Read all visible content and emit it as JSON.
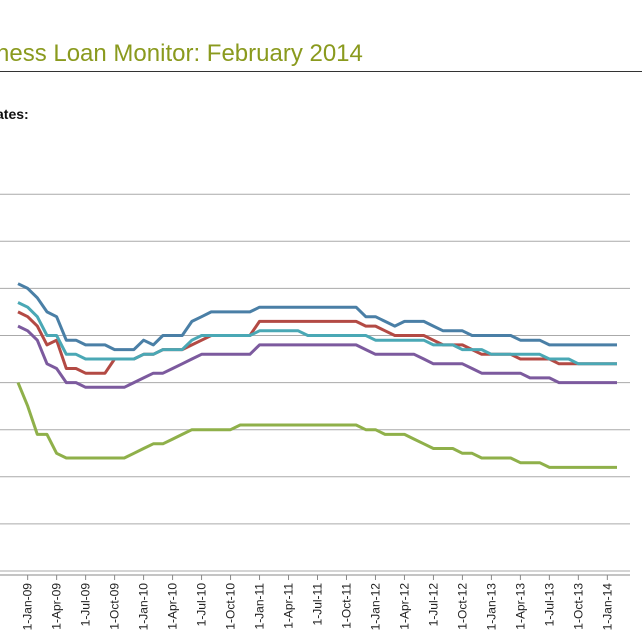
{
  "header": {
    "title": "ness Loan Monitor: February 2014",
    "subtitle": "ates:"
  },
  "chart_data": {
    "type": "line",
    "title": "ness Loan Monitor: February 2014",
    "subtitle": "ates:",
    "xlabel": "",
    "ylabel": "",
    "grid": true,
    "x": [
      "2008-12",
      "2009-01",
      "2009-02",
      "2009-03",
      "2009-04",
      "2009-05",
      "2009-06",
      "2009-07",
      "2009-08",
      "2009-09",
      "2009-10",
      "2009-11",
      "2009-12",
      "2010-01",
      "2010-02",
      "2010-03",
      "2010-04",
      "2010-05",
      "2010-06",
      "2010-07",
      "2010-08",
      "2010-09",
      "2010-10",
      "2010-11",
      "2010-12",
      "2011-01",
      "2011-02",
      "2011-03",
      "2011-04",
      "2011-05",
      "2011-06",
      "2011-07",
      "2011-08",
      "2011-09",
      "2011-10",
      "2011-11",
      "2011-12",
      "2012-01",
      "2012-02",
      "2012-03",
      "2012-04",
      "2012-05",
      "2012-06",
      "2012-07",
      "2012-08",
      "2012-09",
      "2012-10",
      "2012-11",
      "2012-12",
      "2013-01",
      "2013-02",
      "2013-03",
      "2013-04",
      "2013-05",
      "2013-06",
      "2013-07",
      "2013-08",
      "2013-09",
      "2013-10",
      "2013-11",
      "2013-12",
      "2014-01",
      "2014-02"
    ],
    "x_tick_labels": [
      "1-Jan-09",
      "1-Apr-09",
      "1-Jul-09",
      "1-Oct-09",
      "1-Jan-10",
      "1-Apr-10",
      "1-Jul-10",
      "1-Oct-10",
      "1-Jan-11",
      "1-Apr-11",
      "1-Jul-11",
      "1-Oct-11",
      "1-Jan-12",
      "1-Apr-12",
      "1-Jul-12",
      "1-Oct-12",
      "1-Jan-13",
      "1-Apr-13",
      "1-Jul-13",
      "1-Oct-13",
      "1-Jan-14"
    ],
    "ylim": [
      0,
      10
    ],
    "series": [
      {
        "color": "#4a7fa6",
        "values": [
          6.1,
          6.0,
          5.8,
          5.5,
          5.4,
          4.9,
          4.9,
          4.8,
          4.8,
          4.8,
          4.7,
          4.7,
          4.7,
          4.9,
          4.8,
          5.0,
          5.0,
          5.0,
          5.3,
          5.4,
          5.5,
          5.5,
          5.5,
          5.5,
          5.5,
          5.6,
          5.6,
          5.6,
          5.6,
          5.6,
          5.6,
          5.6,
          5.6,
          5.6,
          5.6,
          5.6,
          5.4,
          5.4,
          5.3,
          5.2,
          5.3,
          5.3,
          5.3,
          5.2,
          5.1,
          5.1,
          5.1,
          5.0,
          5.0,
          5.0,
          5.0,
          5.0,
          4.9,
          4.9,
          4.9,
          4.8,
          4.8,
          4.8,
          4.8,
          4.8,
          4.8,
          4.8,
          4.8
        ]
      },
      {
        "color": "#b34a44",
        "values": [
          5.5,
          5.4,
          5.2,
          4.8,
          4.9,
          4.3,
          4.3,
          4.2,
          4.2,
          4.2,
          4.5,
          4.5,
          4.5,
          4.6,
          4.6,
          4.7,
          4.7,
          4.7,
          4.8,
          4.9,
          5.0,
          5.0,
          5.0,
          5.0,
          5.0,
          5.3,
          5.3,
          5.3,
          5.3,
          5.3,
          5.3,
          5.3,
          5.3,
          5.3,
          5.3,
          5.3,
          5.2,
          5.2,
          5.1,
          5.0,
          5.0,
          5.0,
          5.0,
          4.9,
          4.8,
          4.8,
          4.8,
          4.7,
          4.6,
          4.6,
          4.6,
          4.6,
          4.5,
          4.5,
          4.5,
          4.5,
          4.4,
          4.4,
          4.4,
          4.4,
          4.4,
          4.4,
          4.4
        ]
      },
      {
        "color": "#4aa8b5",
        "values": [
          5.7,
          5.6,
          5.4,
          5.0,
          5.0,
          4.6,
          4.6,
          4.5,
          4.5,
          4.5,
          4.5,
          4.5,
          4.5,
          4.6,
          4.6,
          4.7,
          4.7,
          4.7,
          4.9,
          5.0,
          5.0,
          5.0,
          5.0,
          5.0,
          5.0,
          5.1,
          5.1,
          5.1,
          5.1,
          5.1,
          5.0,
          5.0,
          5.0,
          5.0,
          5.0,
          5.0,
          5.0,
          4.9,
          4.9,
          4.9,
          4.9,
          4.9,
          4.9,
          4.8,
          4.8,
          4.8,
          4.7,
          4.7,
          4.7,
          4.6,
          4.6,
          4.6,
          4.6,
          4.6,
          4.6,
          4.5,
          4.5,
          4.5,
          4.4,
          4.4,
          4.4,
          4.4,
          4.4
        ]
      },
      {
        "color": "#7c5a9e",
        "values": [
          5.2,
          5.1,
          4.9,
          4.4,
          4.3,
          4.0,
          4.0,
          3.9,
          3.9,
          3.9,
          3.9,
          3.9,
          4.0,
          4.1,
          4.2,
          4.2,
          4.3,
          4.4,
          4.5,
          4.6,
          4.6,
          4.6,
          4.6,
          4.6,
          4.6,
          4.8,
          4.8,
          4.8,
          4.8,
          4.8,
          4.8,
          4.8,
          4.8,
          4.8,
          4.8,
          4.8,
          4.7,
          4.6,
          4.6,
          4.6,
          4.6,
          4.6,
          4.5,
          4.4,
          4.4,
          4.4,
          4.4,
          4.3,
          4.2,
          4.2,
          4.2,
          4.2,
          4.2,
          4.1,
          4.1,
          4.1,
          4.0,
          4.0,
          4.0,
          4.0,
          4.0,
          4.0,
          4.0
        ]
      },
      {
        "color": "#8fb04a",
        "values": [
          4.0,
          3.5,
          2.9,
          2.9,
          2.5,
          2.4,
          2.4,
          2.4,
          2.4,
          2.4,
          2.4,
          2.4,
          2.5,
          2.6,
          2.7,
          2.7,
          2.8,
          2.9,
          3.0,
          3.0,
          3.0,
          3.0,
          3.0,
          3.1,
          3.1,
          3.1,
          3.1,
          3.1,
          3.1,
          3.1,
          3.1,
          3.1,
          3.1,
          3.1,
          3.1,
          3.1,
          3.0,
          3.0,
          2.9,
          2.9,
          2.9,
          2.8,
          2.7,
          2.6,
          2.6,
          2.6,
          2.5,
          2.5,
          2.4,
          2.4,
          2.4,
          2.4,
          2.3,
          2.3,
          2.3,
          2.2,
          2.2,
          2.2,
          2.2,
          2.2,
          2.2,
          2.2,
          2.2
        ]
      }
    ]
  }
}
